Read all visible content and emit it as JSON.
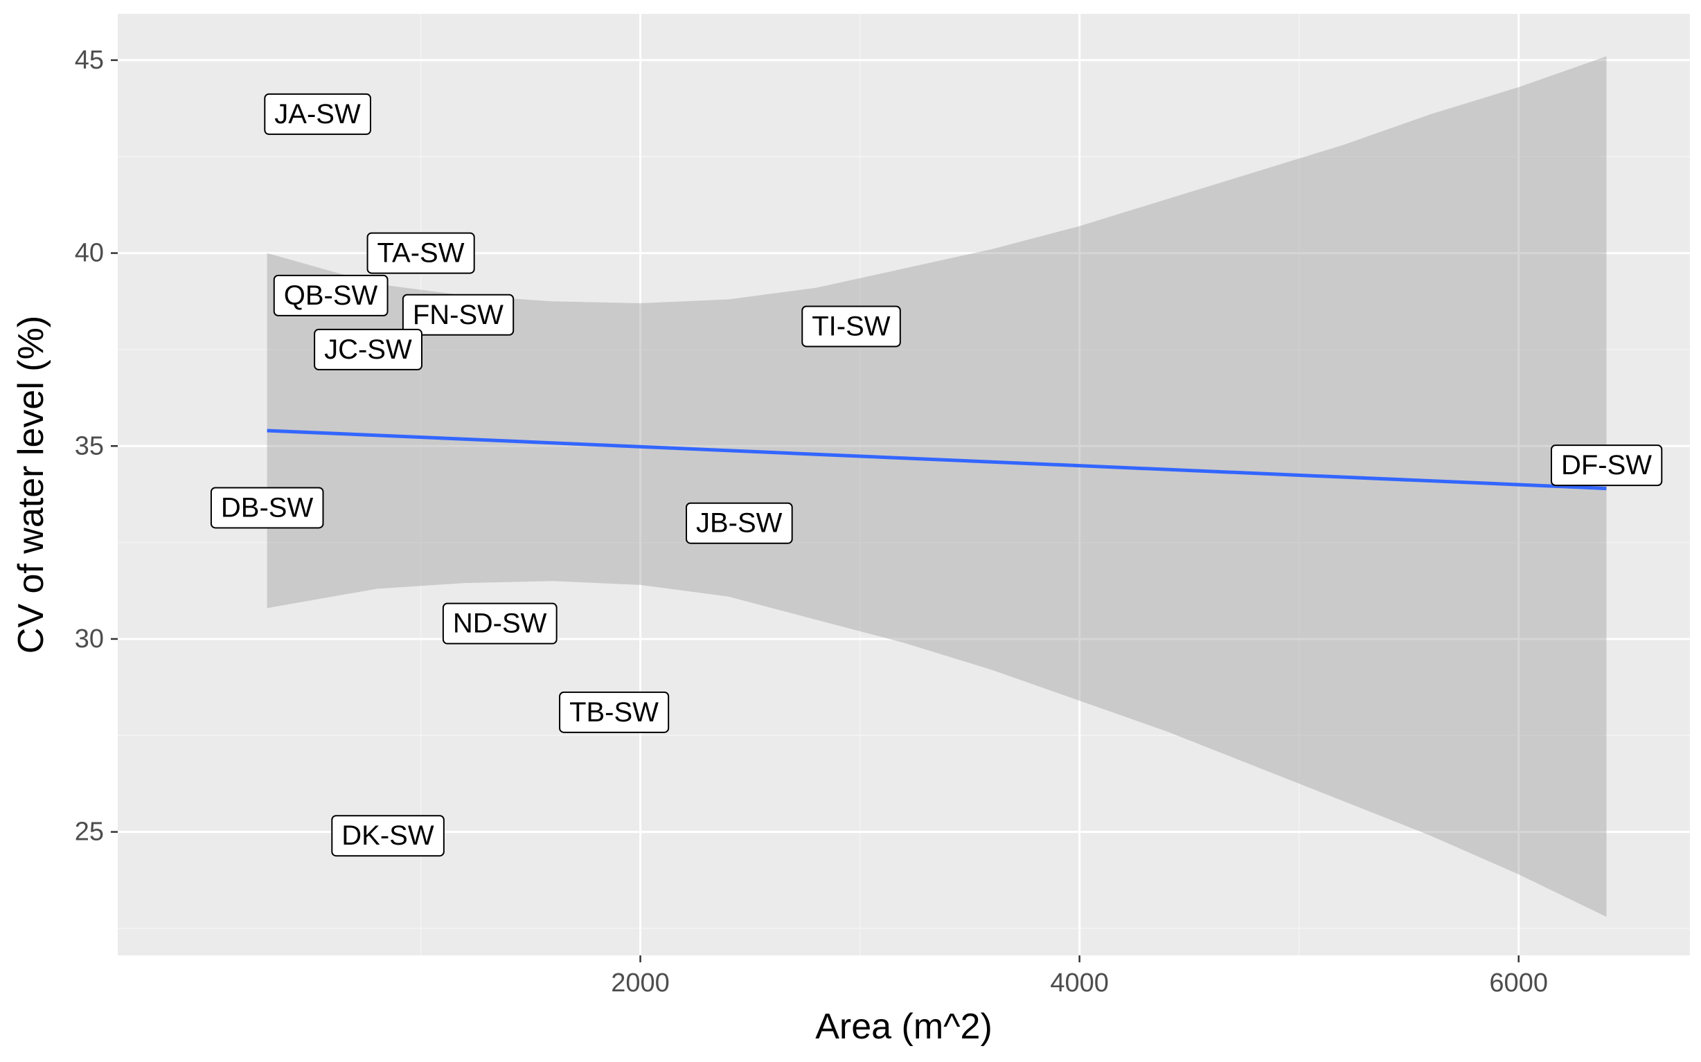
{
  "chart_data": {
    "type": "scatter",
    "xlabel": "Area (m^2)",
    "ylabel": "CV of water level (%)",
    "xlim": [
      -380,
      6780
    ],
    "ylim": [
      21.8,
      46.2
    ],
    "x_ticks": [
      2000,
      4000,
      6000
    ],
    "x_tick_labels": [
      "2000",
      "4000",
      "6000"
    ],
    "x_minor_ticks": [
      1000,
      3000,
      5000
    ],
    "y_ticks": [
      25,
      30,
      35,
      40,
      45
    ],
    "y_tick_labels": [
      "25",
      "30",
      "35",
      "40",
      "45"
    ],
    "y_minor_ticks": [
      22.5,
      27.5,
      32.5,
      37.5,
      42.5
    ],
    "grid": true,
    "legend": "none",
    "points": [
      {
        "label": "JA-SW",
        "x": 530,
        "y": 43.6
      },
      {
        "label": "TA-SW",
        "x": 1000,
        "y": 40.0
      },
      {
        "label": "QB-SW",
        "x": 590,
        "y": 38.9
      },
      {
        "label": "FN-SW",
        "x": 1170,
        "y": 38.4
      },
      {
        "label": "JC-SW",
        "x": 760,
        "y": 37.5
      },
      {
        "label": "TI-SW",
        "x": 2960,
        "y": 38.1
      },
      {
        "label": "DF-SW",
        "x": 6400,
        "y": 34.5
      },
      {
        "label": "DB-SW",
        "x": 300,
        "y": 33.4
      },
      {
        "label": "JB-SW",
        "x": 2450,
        "y": 33.0
      },
      {
        "label": "ND-SW",
        "x": 1360,
        "y": 30.4
      },
      {
        "label": "TB-SW",
        "x": 1880,
        "y": 28.1
      },
      {
        "label": "DK-SW",
        "x": 850,
        "y": 24.9
      }
    ],
    "trend_line": {
      "method": "lm",
      "color": "#3366FF",
      "x": [
        300,
        6400
      ],
      "y": [
        35.4,
        33.9
      ]
    },
    "confidence_band": {
      "color": "#999999",
      "x": [
        300,
        800,
        1200,
        1600,
        2000,
        2400,
        2800,
        3200,
        3600,
        4000,
        4400,
        4800,
        5200,
        5600,
        6000,
        6400
      ],
      "upper": [
        40.0,
        39.2,
        38.9,
        38.75,
        38.7,
        38.8,
        39.1,
        39.6,
        40.1,
        40.7,
        41.4,
        42.1,
        42.8,
        43.6,
        44.3,
        45.1
      ],
      "lower": [
        30.8,
        31.3,
        31.45,
        31.5,
        31.4,
        31.1,
        30.5,
        29.9,
        29.2,
        28.4,
        27.6,
        26.7,
        25.8,
        24.9,
        23.9,
        22.8
      ]
    },
    "colors": {
      "panel_background": "#EBEBEB",
      "grid_major": "#FFFFFF",
      "grid_minor": "#F4F4F4",
      "tick_text": "#4D4D4D",
      "tick_mark": "#333333",
      "label_fill": "#FFFFFF",
      "label_border": "#000000"
    }
  }
}
